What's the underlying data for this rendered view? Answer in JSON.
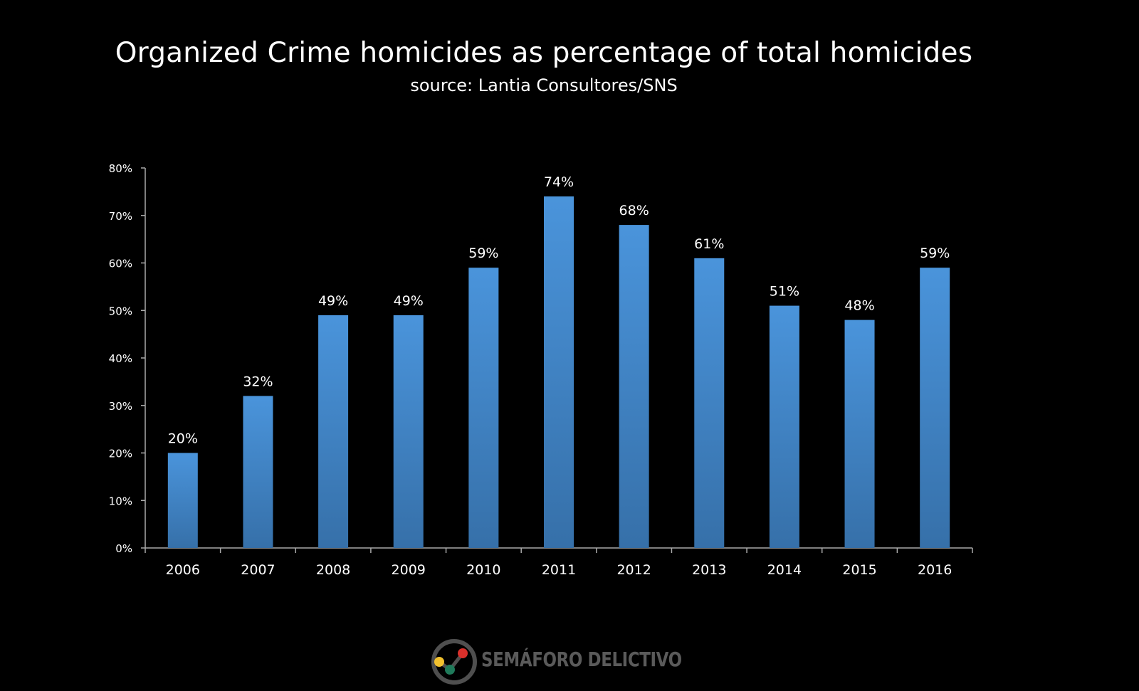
{
  "chart_data": {
    "type": "bar",
    "title": "Organized Crime homicides as percentage of total homicides",
    "subtitle": "source: Lantia Consultores/SNS",
    "categories": [
      "2006",
      "2007",
      "2008",
      "2009",
      "2010",
      "2011",
      "2012",
      "2013",
      "2014",
      "2015",
      "2016"
    ],
    "values": [
      20,
      32,
      49,
      49,
      59,
      74,
      68,
      61,
      51,
      48,
      59
    ],
    "data_labels": [
      "20%",
      "32%",
      "49%",
      "49%",
      "59%",
      "74%",
      "68%",
      "61%",
      "51%",
      "48%",
      "59%"
    ],
    "yticks": [
      "0%",
      "10%",
      "20%",
      "30%",
      "40%",
      "50%",
      "60%",
      "70%",
      "80%"
    ],
    "ylim": [
      0,
      80
    ],
    "xlabel": "",
    "ylabel": "",
    "grid": false,
    "bar_color_top": "#4a94db",
    "bar_color_bottom": "#3670a9"
  },
  "logo": {
    "text": "SEMÁFORO DELICTIVO"
  }
}
